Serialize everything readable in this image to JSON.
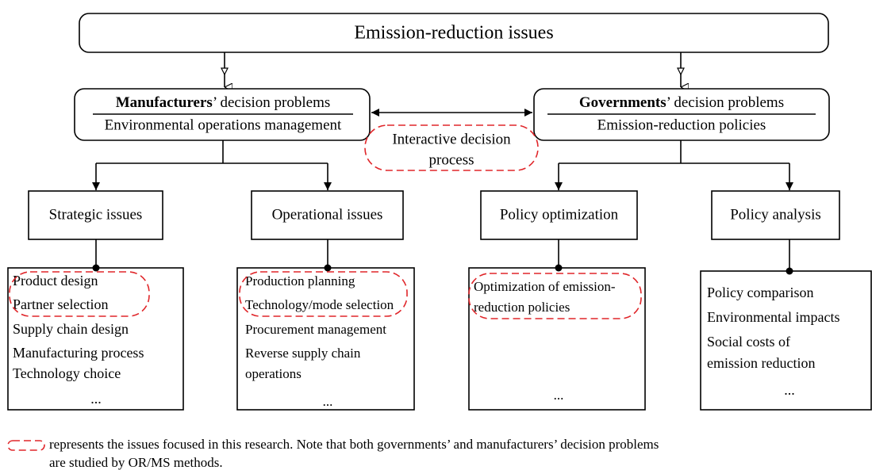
{
  "top": {
    "label": "Emission-reduction issues"
  },
  "manufacturers": {
    "bold": "Manufacturers",
    "rest": "’ decision problems",
    "subtitle": "Environmental operations management"
  },
  "governments": {
    "bold": "Governments",
    "rest": "’ decision problems",
    "subtitle": "Emission-reduction policies"
  },
  "interaction": {
    "lines": [
      "Interactive decision",
      "process"
    ]
  },
  "categories": [
    {
      "label": "Strategic issues",
      "items": [
        "Product design",
        "Partner selection",
        "Supply chain design",
        "Manufacturing process",
        "Technology choice",
        "..."
      ]
    },
    {
      "label": "Operational issues",
      "items": [
        "Production planning",
        "Technology/mode selection",
        "Procurement management",
        "Reverse supply chain",
        "operations",
        "..."
      ]
    },
    {
      "label": "Policy optimization",
      "items": [
        "Optimization of emission-",
        "reduction policies",
        "..."
      ]
    },
    {
      "label": "Policy analysis",
      "items": [
        "Policy comparison",
        "Environmental impacts",
        "Social costs of",
        "emission reduction",
        "..."
      ]
    }
  ],
  "note": {
    "lines": [
      "represents the issues focused in this research. Note that both governments’ and manufacturers’ decision problems",
      "are studied by OR/MS methods."
    ]
  }
}
